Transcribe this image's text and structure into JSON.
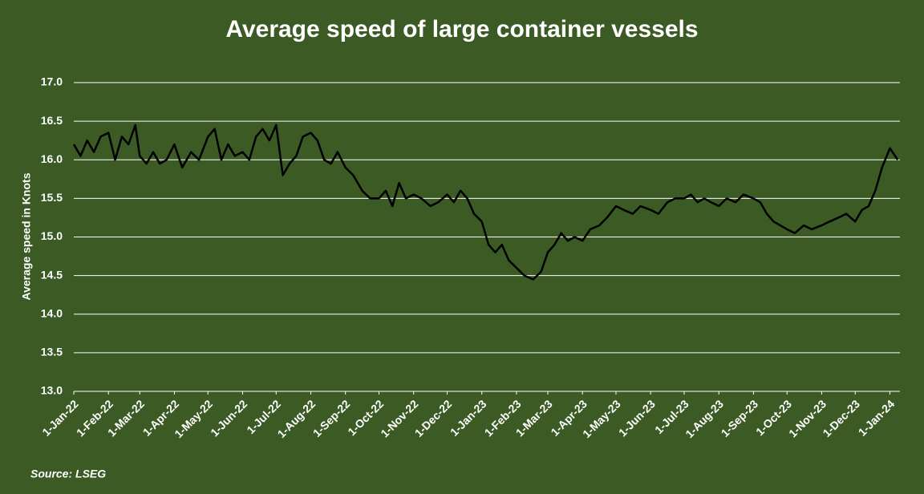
{
  "chart_data": {
    "type": "line",
    "title": "Average speed of large container vessels",
    "y_label": "Average speed in Knots",
    "source": "Source: LSEG",
    "xlim": [
      "2022-01-01",
      "2024-01-10"
    ],
    "ylim": [
      13,
      17
    ],
    "yticks": [
      {
        "value": 13,
        "label": "13.0"
      },
      13.5,
      {
        "value": 14,
        "label": "14.0"
      },
      14.5,
      {
        "value": 15,
        "label": "15.0"
      },
      15.5,
      {
        "value": 16,
        "label": "16.0"
      },
      16.5,
      {
        "value": 17,
        "label": "17.0"
      }
    ],
    "xticks": [
      {
        "value": "2022-01-01",
        "label": "1-Jan-22"
      },
      {
        "value": "2022-02-01",
        "label": "1-Feb-22"
      },
      {
        "value": "2022-03-01",
        "label": "1-Mar-22"
      },
      {
        "value": "2022-04-01",
        "label": "1-Apr-22"
      },
      {
        "value": "2022-05-01",
        "label": "1-May-22"
      },
      {
        "value": "2022-06-01",
        "label": "1-Jun-22"
      },
      {
        "value": "2022-07-01",
        "label": "1-Jul-22"
      },
      {
        "value": "2022-08-01",
        "label": "1-Aug-22"
      },
      {
        "value": "2022-09-01",
        "label": "1-Sep-22"
      },
      {
        "value": "2022-10-01",
        "label": "1-Oct-22"
      },
      {
        "value": "2022-11-01",
        "label": "1-Nov-22"
      },
      {
        "value": "2022-12-01",
        "label": "1-Dec-22"
      },
      {
        "value": "2023-01-01",
        "label": "1-Jan-23"
      },
      {
        "value": "2023-02-01",
        "label": "1-Feb-23"
      },
      {
        "value": "2023-03-01",
        "label": "1-Mar-23"
      },
      {
        "value": "2023-04-01",
        "label": "1-Apr-23"
      },
      {
        "value": "2023-05-01",
        "label": "1-May-23"
      },
      {
        "value": "2023-06-01",
        "label": "1-Jun-23"
      },
      {
        "value": "2023-07-01",
        "label": "1-Jul-23"
      },
      {
        "value": "2023-08-01",
        "label": "1-Aug-23"
      },
      {
        "value": "2023-09-01",
        "label": "1-Sep-23"
      },
      {
        "value": "2023-10-01",
        "label": "1-Oct-23"
      },
      {
        "value": "2023-11-01",
        "label": "1-Nov-23"
      },
      {
        "value": "2023-12-01",
        "label": "1-Dec-23"
      },
      {
        "value": "2024-01-01",
        "label": "1-Jan-24"
      }
    ],
    "grid": true,
    "x": [
      "2022-01-01",
      "2022-01-07",
      "2022-01-13",
      "2022-01-19",
      "2022-01-25",
      "2022-02-01",
      "2022-02-07",
      "2022-02-13",
      "2022-02-19",
      "2022-02-25",
      "2022-03-01",
      "2022-03-07",
      "2022-03-13",
      "2022-03-19",
      "2022-03-25",
      "2022-04-01",
      "2022-04-08",
      "2022-04-16",
      "2022-04-23",
      "2022-05-01",
      "2022-05-07",
      "2022-05-13",
      "2022-05-19",
      "2022-05-25",
      "2022-06-01",
      "2022-06-07",
      "2022-06-13",
      "2022-06-19",
      "2022-06-25",
      "2022-07-01",
      "2022-07-07",
      "2022-07-13",
      "2022-07-19",
      "2022-07-25",
      "2022-08-01",
      "2022-08-07",
      "2022-08-13",
      "2022-08-19",
      "2022-08-25",
      "2022-09-01",
      "2022-09-08",
      "2022-09-16",
      "2022-09-23",
      "2022-10-01",
      "2022-10-07",
      "2022-10-13",
      "2022-10-19",
      "2022-10-25",
      "2022-11-01",
      "2022-11-08",
      "2022-11-16",
      "2022-11-23",
      "2022-12-01",
      "2022-12-07",
      "2022-12-13",
      "2022-12-19",
      "2022-12-25",
      "2023-01-01",
      "2023-01-07",
      "2023-01-13",
      "2023-01-19",
      "2023-01-25",
      "2023-02-01",
      "2023-02-08",
      "2023-02-16",
      "2023-02-23",
      "2023-03-01",
      "2023-03-07",
      "2023-03-13",
      "2023-03-19",
      "2023-03-25",
      "2023-04-01",
      "2023-04-08",
      "2023-04-16",
      "2023-04-23",
      "2023-05-01",
      "2023-05-08",
      "2023-05-16",
      "2023-05-23",
      "2023-06-01",
      "2023-06-08",
      "2023-06-16",
      "2023-06-23",
      "2023-07-01",
      "2023-07-07",
      "2023-07-13",
      "2023-07-19",
      "2023-07-25",
      "2023-08-01",
      "2023-08-08",
      "2023-08-16",
      "2023-08-23",
      "2023-09-01",
      "2023-09-07",
      "2023-09-13",
      "2023-09-19",
      "2023-09-25",
      "2023-10-01",
      "2023-10-08",
      "2023-10-16",
      "2023-10-23",
      "2023-11-01",
      "2023-11-08",
      "2023-11-16",
      "2023-11-23",
      "2023-12-01",
      "2023-12-07",
      "2023-12-13",
      "2023-12-19",
      "2023-12-25",
      "2024-01-01",
      "2024-01-08"
    ],
    "series": [
      {
        "name": "Average speed",
        "color": "#000000",
        "values": [
          16.2,
          16.05,
          16.25,
          16.1,
          16.3,
          16.35,
          16.0,
          16.3,
          16.2,
          16.45,
          16.05,
          15.95,
          16.1,
          15.95,
          16.0,
          16.2,
          15.9,
          16.1,
          16.0,
          16.3,
          16.4,
          16.0,
          16.2,
          16.05,
          16.1,
          16.0,
          16.3,
          16.4,
          16.25,
          16.45,
          15.8,
          15.95,
          16.05,
          16.3,
          16.35,
          16.25,
          16.0,
          15.95,
          16.1,
          15.9,
          15.8,
          15.6,
          15.5,
          15.5,
          15.6,
          15.4,
          15.7,
          15.5,
          15.55,
          15.5,
          15.4,
          15.45,
          15.55,
          15.45,
          15.6,
          15.5,
          15.3,
          15.2,
          14.9,
          14.8,
          14.9,
          14.7,
          14.6,
          14.5,
          14.45,
          14.55,
          14.8,
          14.9,
          15.05,
          14.95,
          15.0,
          14.95,
          15.1,
          15.15,
          15.25,
          15.4,
          15.35,
          15.3,
          15.4,
          15.35,
          15.3,
          15.45,
          15.5,
          15.5,
          15.55,
          15.45,
          15.5,
          15.45,
          15.4,
          15.5,
          15.45,
          15.55,
          15.5,
          15.45,
          15.3,
          15.2,
          15.15,
          15.1,
          15.05,
          15.15,
          15.1,
          15.15,
          15.2,
          15.25,
          15.3,
          15.2,
          15.35,
          15.4,
          15.6,
          15.9,
          16.15,
          16.0
        ]
      }
    ]
  }
}
